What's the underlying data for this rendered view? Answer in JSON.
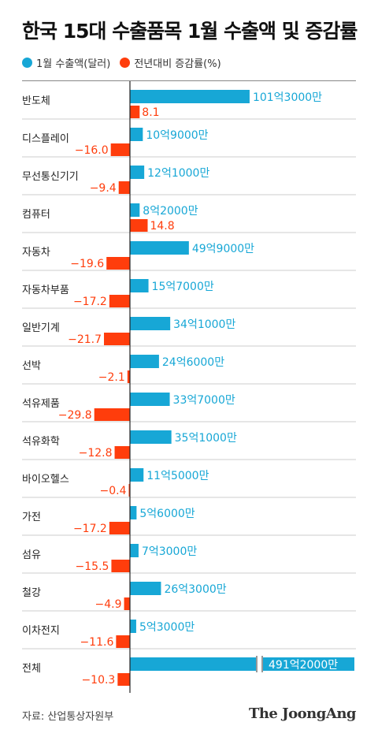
{
  "title": "한국 15대 수출품목 1월 수출액 및 증감률",
  "source": "자료: 산업통상자원부",
  "logo": "The JoongAng",
  "colors": {
    "series1": "#17a7d6",
    "series2": "#ff3d0c"
  },
  "chart_data": {
    "type": "bar",
    "orientation": "horizontal",
    "categories": [
      "반도체",
      "디스플레이",
      "무선통신기기",
      "컴퓨터",
      "자동차",
      "자동차부품",
      "일반기계",
      "선박",
      "석유제품",
      "석유화학",
      "바이오헬스",
      "가전",
      "섬유",
      "철강",
      "이차전지",
      "전체"
    ],
    "series": [
      {
        "name": "1월 수출액(달러)",
        "values": [
          101.3,
          10.9,
          12.1,
          8.2,
          49.9,
          15.7,
          34.1,
          24.6,
          33.7,
          35.1,
          11.5,
          5.6,
          7.3,
          26.3,
          5.3,
          491.2
        ],
        "unit": "억 달러",
        "labels": [
          "101억3000만",
          "10억9000만",
          "12억1000만",
          "8억2000만",
          "49억9000만",
          "15억7000만",
          "34억1000만",
          "24억6000만",
          "33억7000만",
          "35억1000만",
          "11억5000만",
          "5억6000만",
          "7억3000만",
          "26억3000만",
          "5억3000만",
          "491억2000만"
        ]
      },
      {
        "name": "전년대비 증감률(%)",
        "values": [
          8.1,
          -16.0,
          -9.4,
          14.8,
          -19.6,
          -17.2,
          -21.7,
          -2.1,
          -29.8,
          -12.8,
          -0.4,
          -17.2,
          -15.5,
          -4.9,
          -11.6,
          -10.3
        ],
        "unit": "%",
        "labels": [
          "8.1",
          "−16.0",
          "−9.4",
          "14.8",
          "−19.6",
          "−17.2",
          "−21.7",
          "−2.1",
          "−29.8",
          "−12.8",
          "−0.4",
          "−17.2",
          "−15.5",
          "−4.9",
          "−11.6",
          "−10.3"
        ]
      }
    ],
    "axis_break_on": "전체",
    "legend": "top-left",
    "grid": false
  }
}
